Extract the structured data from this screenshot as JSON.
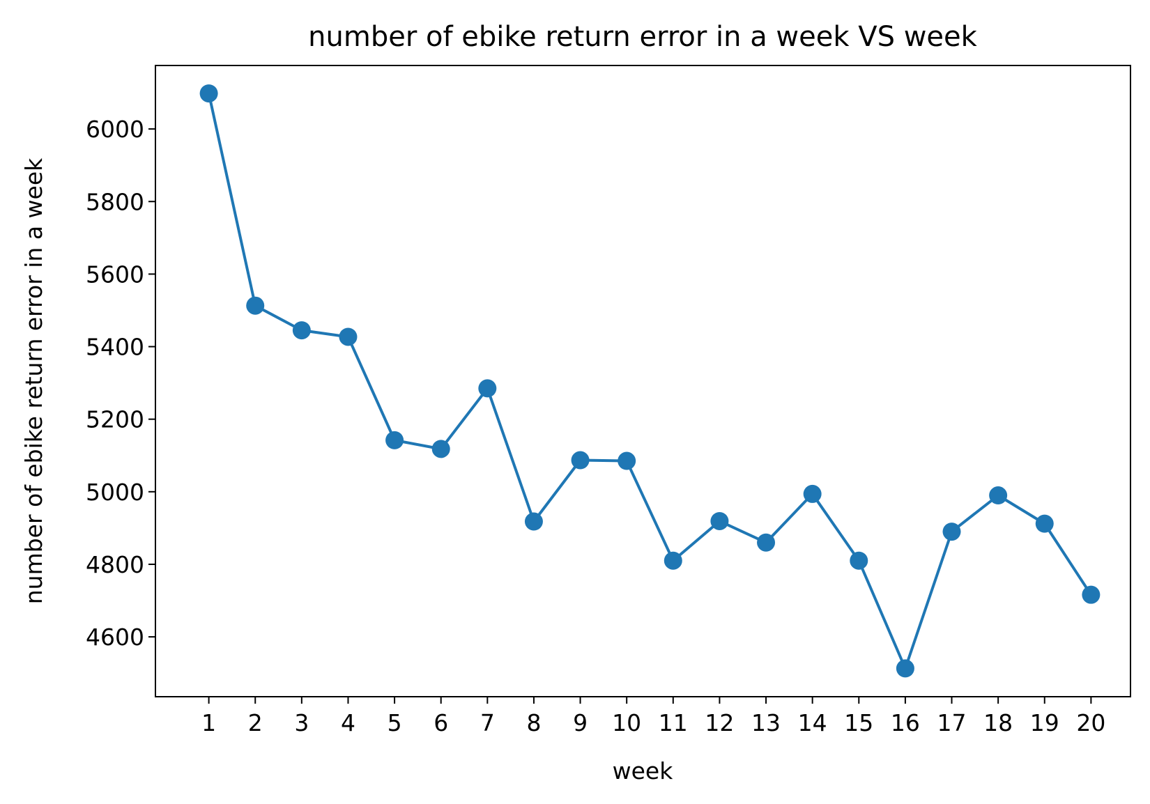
{
  "chart_data": {
    "type": "line",
    "title": "number of ebike return error in a week VS week",
    "xlabel": "week",
    "ylabel": "number of ebike return error in a week",
    "x": [
      1,
      2,
      3,
      4,
      5,
      6,
      7,
      8,
      9,
      10,
      11,
      12,
      13,
      14,
      15,
      16,
      17,
      18,
      19,
      20
    ],
    "x_ticks": [
      "1",
      "2",
      "3",
      "4",
      "5",
      "6",
      "7",
      "8",
      "9",
      "10",
      "11",
      "12",
      "13",
      "14",
      "15",
      "16",
      "17",
      "18",
      "19",
      "20"
    ],
    "y_ticks": [
      4600,
      4800,
      5000,
      5200,
      5400,
      5600,
      5800,
      6000
    ],
    "xlim": [
      -0.15,
      20.85
    ],
    "ylim": [
      4435,
      6175
    ],
    "grid": false,
    "series": [
      {
        "values": [
          6098,
          5513,
          5445,
          5427,
          5142,
          5118,
          5285,
          4918,
          5087,
          5085,
          4810,
          4919,
          4860,
          4994,
          4810,
          4513,
          4890,
          4990,
          4912,
          4716
        ],
        "color": "#1f77b4",
        "marker": "circle"
      }
    ]
  }
}
